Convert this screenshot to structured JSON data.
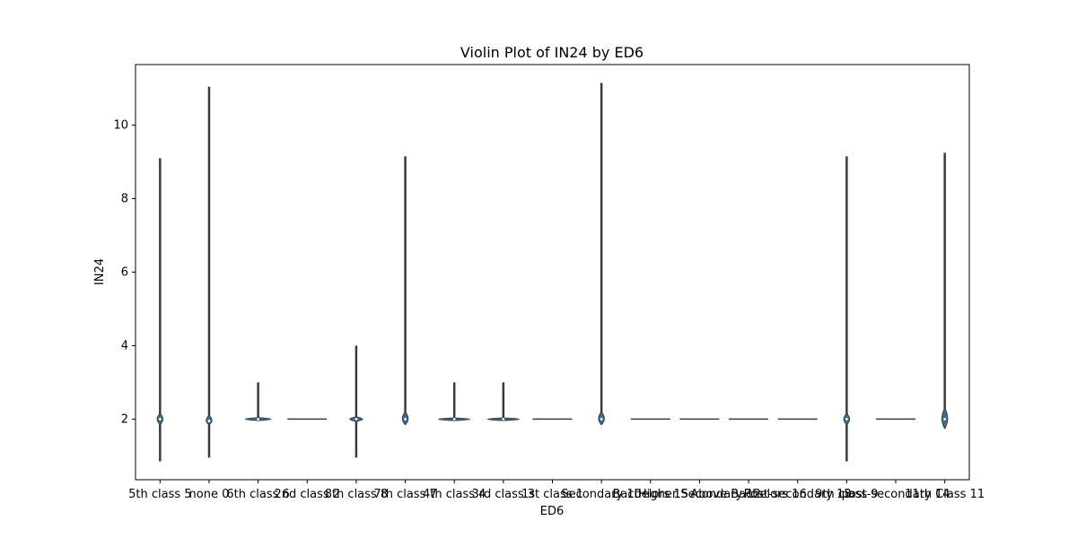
{
  "chart_data": {
    "type": "violin",
    "title": "Violin Plot of IN24 by ED6",
    "xlabel": "ED6",
    "ylabel": "IN24",
    "ylim": [
      0.35,
      11.65
    ],
    "yticks": [
      2,
      4,
      6,
      8,
      10
    ],
    "grid": false,
    "legend": "none",
    "fill_color": "#3a6f8f",
    "line_color": "#3a3a3a",
    "categories": [
      "5th class 5",
      "none 0",
      "6th class 6",
      "2nd class 2",
      "8th class 8",
      "7th class 7",
      "4th class 4",
      "3rd class 3",
      "1st class 1",
      "Secondary 10",
      "Bachelors 15",
      "Higher Secondary 12",
      "Above Bachelors 16",
      "Post-secondary 13",
      "9th class 9",
      "post-secondary 14",
      "11th Class 11"
    ],
    "violins": [
      {
        "min": 0.85,
        "max": 9.1,
        "median": 2.0,
        "bulge": [
          1.85,
          2.15
        ],
        "w": 4
      },
      {
        "min": 0.95,
        "max": 11.05,
        "median": 1.95,
        "bulge": [
          1.85,
          2.1
        ],
        "w": 4
      },
      {
        "min": 1.98,
        "max": 3.0,
        "median": 2.0,
        "bulge": [
          1.96,
          2.04
        ],
        "w": 18
      },
      {
        "min": 2.0,
        "max": 2.0,
        "median": 2.0,
        "bulge": [
          2.0,
          2.0
        ],
        "w": 22
      },
      {
        "min": 0.95,
        "max": 4.0,
        "median": 2.0,
        "bulge": [
          1.94,
          2.06
        ],
        "w": 9
      },
      {
        "min": 1.85,
        "max": 9.15,
        "median": 2.0,
        "bulge": [
          1.85,
          2.2
        ],
        "w": 4
      },
      {
        "min": 1.98,
        "max": 3.0,
        "median": 2.0,
        "bulge": [
          1.96,
          2.03
        ],
        "w": 22
      },
      {
        "min": 1.98,
        "max": 3.0,
        "median": 2.0,
        "bulge": [
          1.96,
          2.03
        ],
        "w": 22
      },
      {
        "min": 2.0,
        "max": 2.0,
        "median": 2.0,
        "bulge": [
          2.0,
          2.0
        ],
        "w": 22
      },
      {
        "min": 1.85,
        "max": 11.15,
        "median": 2.0,
        "bulge": [
          1.85,
          2.2
        ],
        "w": 4
      },
      {
        "min": 2.0,
        "max": 2.0,
        "median": 2.0,
        "bulge": [
          2.0,
          2.0
        ],
        "w": 22
      },
      {
        "min": 2.0,
        "max": 2.0,
        "median": 2.0,
        "bulge": [
          2.0,
          2.0
        ],
        "w": 22
      },
      {
        "min": 2.0,
        "max": 2.0,
        "median": 2.0,
        "bulge": [
          2.0,
          2.0
        ],
        "w": 22
      },
      {
        "min": 2.0,
        "max": 2.0,
        "median": 2.0,
        "bulge": [
          2.0,
          2.0
        ],
        "w": 22
      },
      {
        "min": 0.85,
        "max": 9.15,
        "median": 2.0,
        "bulge": [
          1.85,
          2.15
        ],
        "w": 4
      },
      {
        "min": 2.0,
        "max": 2.0,
        "median": 2.0,
        "bulge": [
          2.0,
          2.0
        ],
        "w": 22
      },
      {
        "min": 1.75,
        "max": 9.25,
        "median": 2.0,
        "bulge": [
          1.75,
          2.3
        ],
        "w": 4
      }
    ]
  }
}
